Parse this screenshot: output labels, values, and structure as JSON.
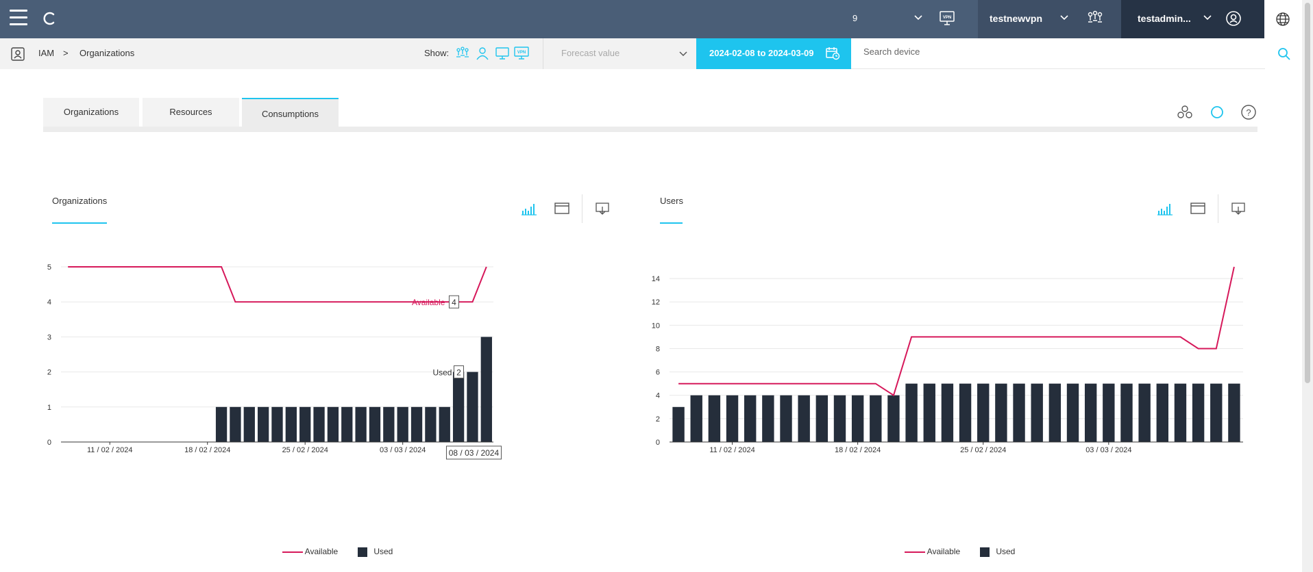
{
  "topbar": {
    "count": "9",
    "vpn_name": "testnewvpn",
    "user_name": "testadmin..."
  },
  "subbar": {
    "breadcrumb": [
      "IAM",
      ">",
      "Organizations"
    ],
    "show_label": "Show:",
    "forecast_placeholder": "Forecast value",
    "date_range": "2024-02-08 to 2024-03-09",
    "search_placeholder": "Search device"
  },
  "tabs": [
    {
      "label": "Organizations"
    },
    {
      "label": "Resources"
    },
    {
      "label": "Consumptions"
    }
  ],
  "active_tab": "Consumptions",
  "panels": [
    {
      "title": "Organizations"
    },
    {
      "title": "Users"
    }
  ],
  "chart_data": [
    {
      "type": "bar",
      "title": "Organizations",
      "xlabel": "",
      "ylabel": "",
      "ylim": [
        0,
        5
      ],
      "yticks": [
        0,
        1,
        2,
        3,
        4,
        5
      ],
      "grid": true,
      "xtick_labels": [
        {
          "index": 3,
          "label": "11 / 02 / 2024"
        },
        {
          "index": 10,
          "label": "18 / 02 / 2024"
        },
        {
          "index": 17,
          "label": "25 / 02 / 2024"
        },
        {
          "index": 24,
          "label": "03 / 03 / 2024"
        }
      ],
      "categories": [
        "2024-02-08",
        "2024-02-09",
        "2024-02-10",
        "2024-02-11",
        "2024-02-12",
        "2024-02-13",
        "2024-02-14",
        "2024-02-15",
        "2024-02-16",
        "2024-02-17",
        "2024-02-18",
        "2024-02-19",
        "2024-02-20",
        "2024-02-21",
        "2024-02-22",
        "2024-02-23",
        "2024-02-24",
        "2024-02-25",
        "2024-02-26",
        "2024-02-27",
        "2024-02-28",
        "2024-02-29",
        "2024-03-01",
        "2024-03-02",
        "2024-03-03",
        "2024-03-04",
        "2024-03-05",
        "2024-03-06",
        "2024-03-07",
        "2024-03-08",
        "2024-03-09"
      ],
      "series": [
        {
          "name": "Available",
          "kind": "line",
          "color": "#d6185a",
          "values": [
            5,
            5,
            5,
            5,
            5,
            5,
            5,
            5,
            5,
            5,
            5,
            5,
            4,
            4,
            4,
            4,
            4,
            4,
            4,
            4,
            4,
            4,
            4,
            4,
            4,
            4,
            4,
            4,
            4,
            4,
            5
          ]
        },
        {
          "name": "Used",
          "kind": "bar",
          "color": "#252e3b",
          "values": [
            0,
            0,
            0,
            0,
            0,
            0,
            0,
            0,
            0,
            0,
            0,
            1,
            1,
            1,
            1,
            1,
            1,
            1,
            1,
            1,
            1,
            1,
            1,
            1,
            1,
            1,
            1,
            1,
            2,
            2,
            3
          ]
        }
      ],
      "hover": {
        "date": "08 / 03 / 2024",
        "available": "4",
        "used": "2"
      },
      "legend": "bottom-center"
    },
    {
      "type": "bar",
      "title": "Users",
      "xlabel": "",
      "ylabel": "",
      "ylim": [
        0,
        15
      ],
      "yticks": [
        0,
        2,
        4,
        6,
        8,
        10,
        12,
        14
      ],
      "grid": true,
      "xtick_labels": [
        {
          "index": 3,
          "label": "11 / 02 / 2024"
        },
        {
          "index": 10,
          "label": "18 / 02 / 2024"
        },
        {
          "index": 17,
          "label": "25 / 02 / 2024"
        },
        {
          "index": 24,
          "label": "03 / 03 / 2024"
        }
      ],
      "categories": [
        "2024-02-08",
        "2024-02-09",
        "2024-02-10",
        "2024-02-11",
        "2024-02-12",
        "2024-02-13",
        "2024-02-14",
        "2024-02-15",
        "2024-02-16",
        "2024-02-17",
        "2024-02-18",
        "2024-02-19",
        "2024-02-20",
        "2024-02-21",
        "2024-02-22",
        "2024-02-23",
        "2024-02-24",
        "2024-02-25",
        "2024-02-26",
        "2024-02-27",
        "2024-02-28",
        "2024-02-29",
        "2024-03-01",
        "2024-03-02",
        "2024-03-03",
        "2024-03-04",
        "2024-03-05",
        "2024-03-06",
        "2024-03-07",
        "2024-03-08",
        "2024-03-09",
        "2024-03-10"
      ],
      "series": [
        {
          "name": "Available",
          "kind": "line",
          "color": "#d6185a",
          "values": [
            5,
            5,
            5,
            5,
            5,
            5,
            5,
            5,
            5,
            5,
            5,
            5,
            4,
            9,
            9,
            9,
            9,
            9,
            9,
            9,
            9,
            9,
            9,
            9,
            9,
            9,
            9,
            9,
            9,
            8,
            8,
            15
          ]
        },
        {
          "name": "Used",
          "kind": "bar",
          "color": "#252e3b",
          "values": [
            3,
            4,
            4,
            4,
            4,
            4,
            4,
            4,
            4,
            4,
            4,
            4,
            4,
            5,
            5,
            5,
            5,
            5,
            5,
            5,
            5,
            5,
            5,
            5,
            5,
            5,
            5,
            5,
            5,
            5,
            5,
            5
          ]
        }
      ],
      "legend": "bottom-center"
    }
  ],
  "legend_labels": {
    "available": "Available",
    "used": "Used"
  },
  "colors": {
    "topbar": "#4a5e77",
    "accent": "#1ec4ee",
    "available": "#d6185a",
    "used": "#252e3b"
  }
}
